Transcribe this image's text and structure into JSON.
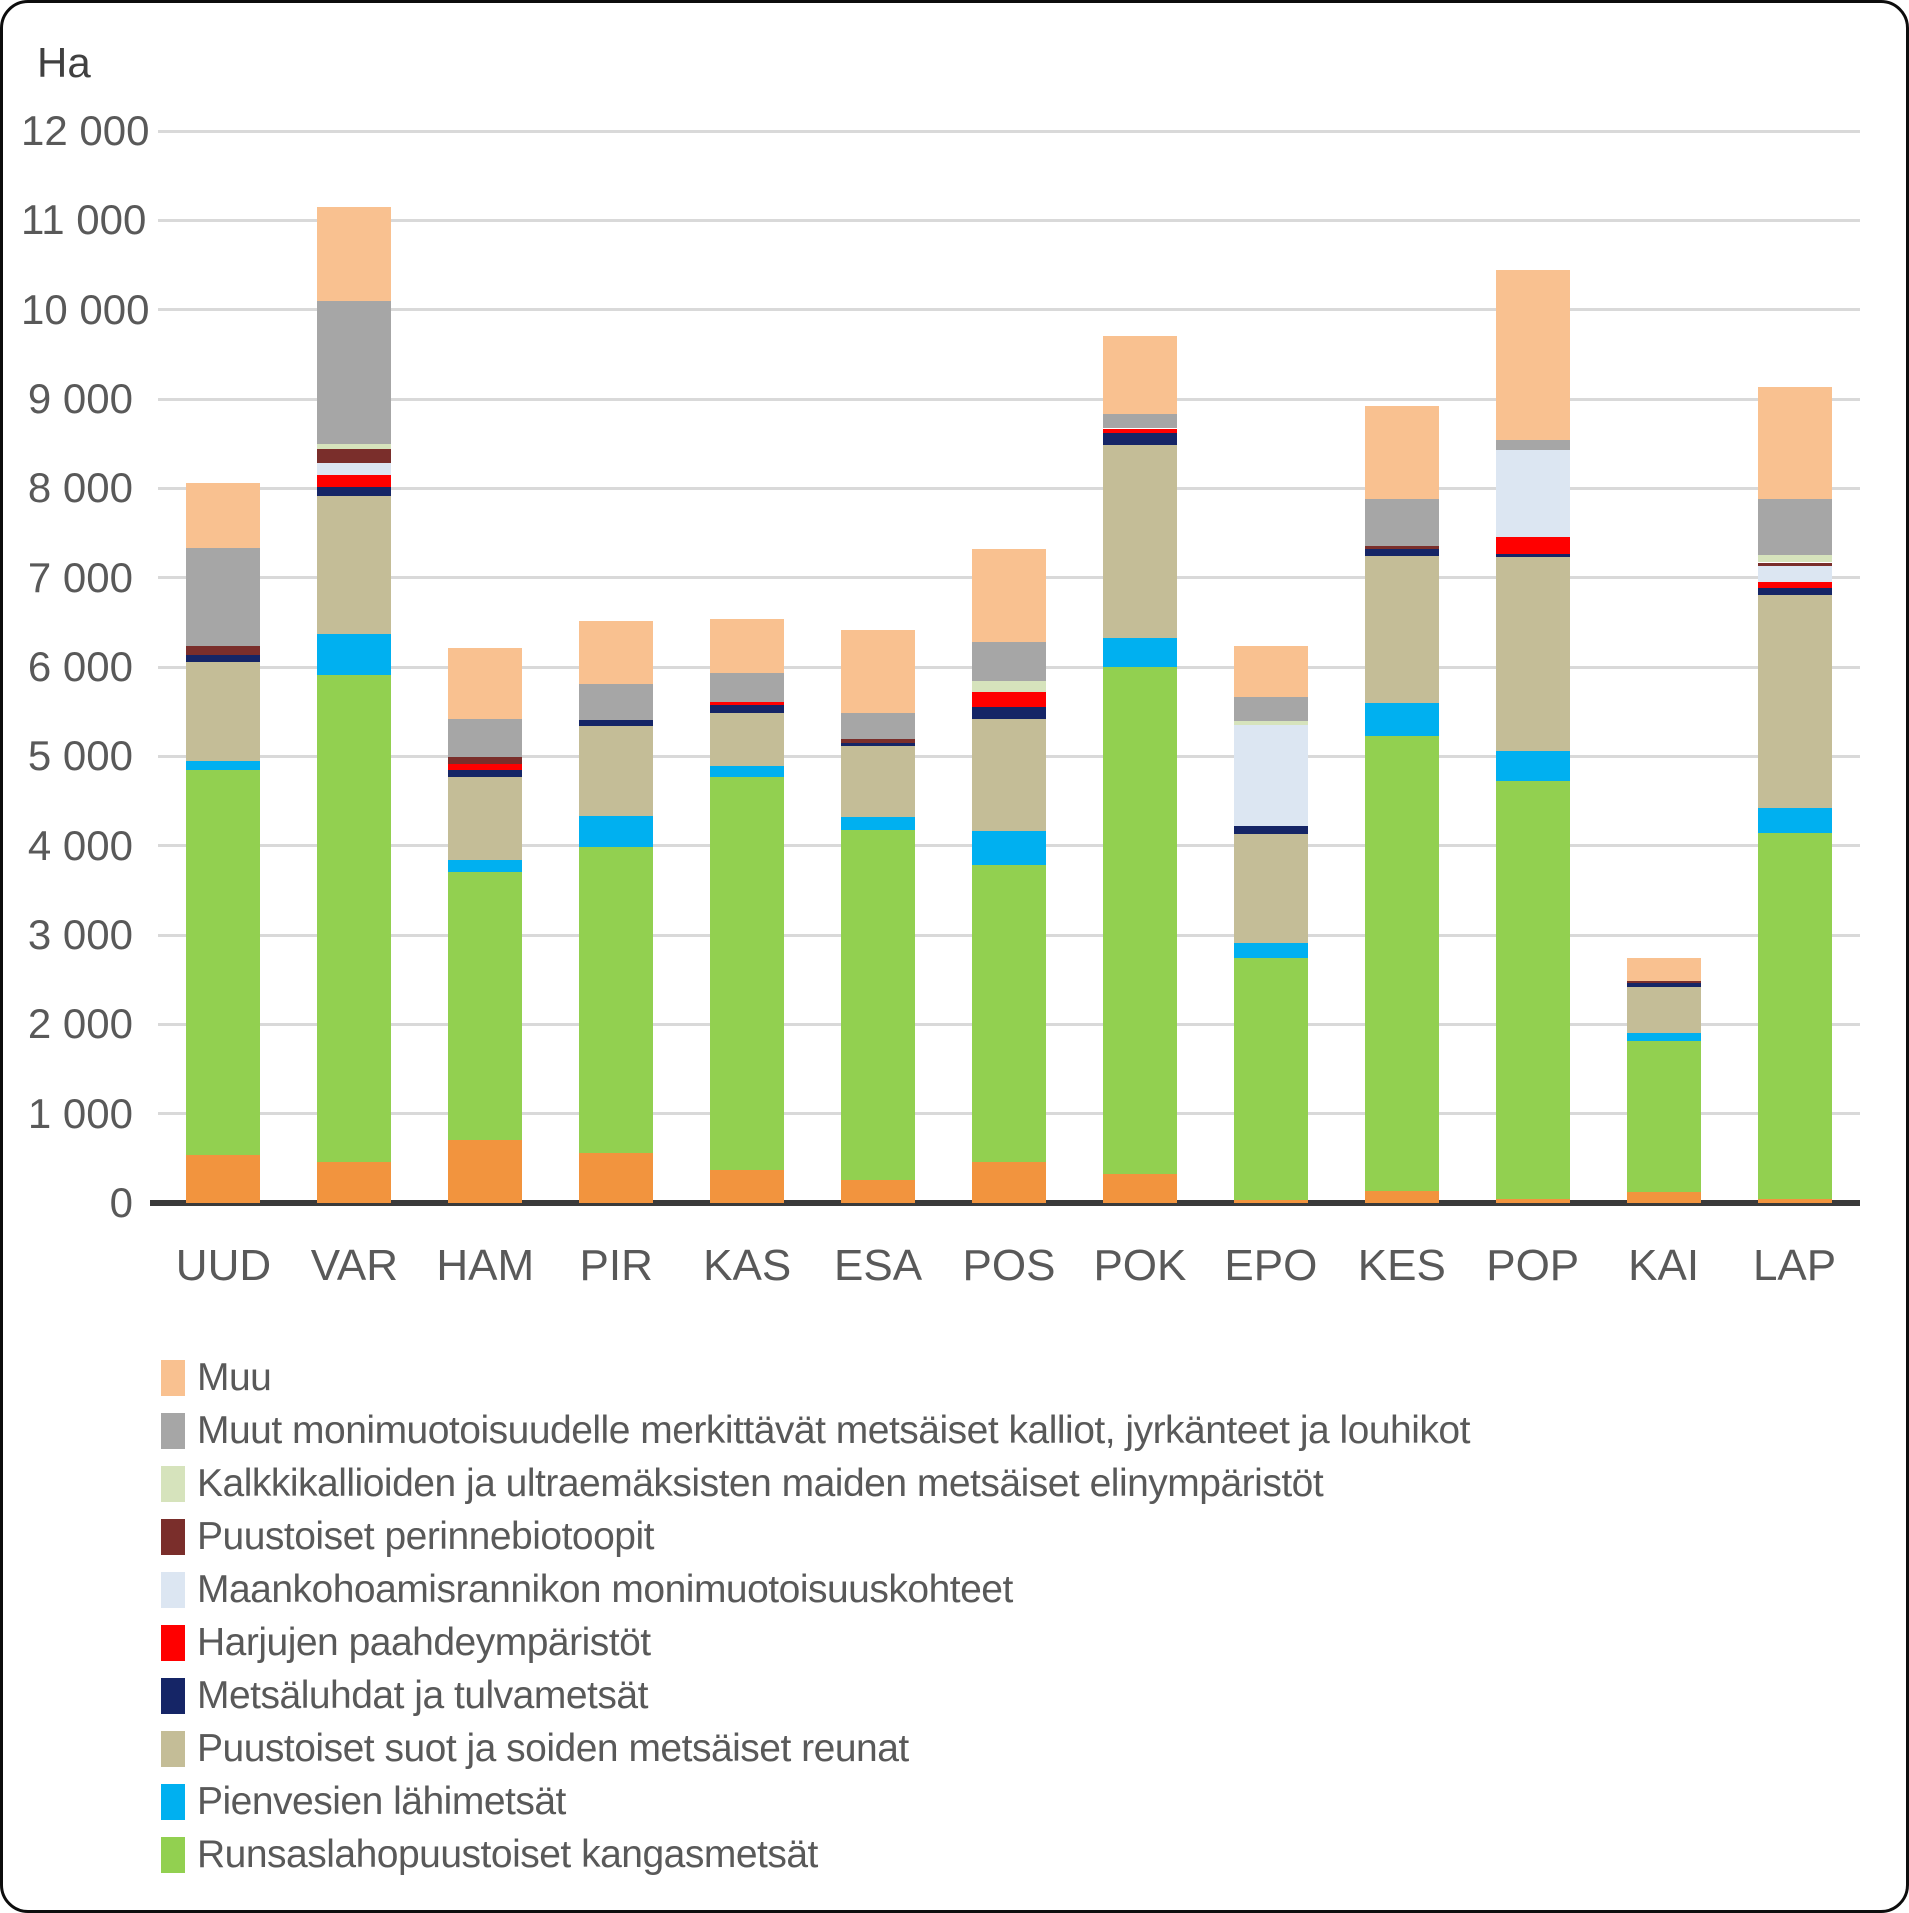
{
  "chart_data": {
    "type": "bar",
    "subtype": "stacked-vertical",
    "unit_label": "Ha",
    "ylim": [
      0,
      12000
    ],
    "ytick_interval": 1000,
    "ytick_labels": [
      "0",
      "1 000",
      "2 000",
      "3 000",
      "4 000",
      "5 000",
      "6 000",
      "7 000",
      "8 000",
      "9 000",
      "10 000",
      "11 000",
      "12 000"
    ],
    "grid": "horizontal-light-gray",
    "legend_position": "bottom-left",
    "categories": [
      "UUD",
      "VAR",
      "HAM",
      "PIR",
      "KAS",
      "ESA",
      "POS",
      "POK",
      "EPO",
      "KES",
      "POP",
      "KAI",
      "LAP"
    ],
    "series": [
      {
        "name": "",
        "color": "#F2943E",
        "in_legend": false,
        "values": [
          540,
          460,
          700,
          560,
          370,
          260,
          460,
          330,
          30,
          130,
          40,
          120,
          40
        ]
      },
      {
        "name": "Runsaslahopuustoiset kangasmetsät",
        "color": "#92D050",
        "in_legend": true,
        "values": [
          4310,
          5450,
          3010,
          3430,
          4400,
          3920,
          3320,
          5670,
          2710,
          5100,
          4680,
          1690,
          4100
        ]
      },
      {
        "name": "Pienvesien lähimetsät",
        "color": "#00B0F0",
        "in_legend": true,
        "values": [
          100,
          460,
          130,
          340,
          120,
          140,
          380,
          330,
          170,
          370,
          340,
          90,
          280
        ]
      },
      {
        "name": "Puustoiset suot ja soiden metsäiset reunat",
        "color": "#C4BD97",
        "in_legend": true,
        "values": [
          1110,
          1540,
          930,
          1010,
          590,
          800,
          1260,
          2150,
          1220,
          1640,
          2170,
          520,
          2390
        ]
      },
      {
        "name": "Metsäluhdat ja tulvametsät",
        "color": "#152566",
        "in_legend": true,
        "values": [
          70,
          110,
          80,
          70,
          100,
          30,
          130,
          140,
          90,
          80,
          40,
          40,
          80
        ]
      },
      {
        "name": "Harjujen paahdeympäristöt",
        "color": "#FF0000",
        "in_legend": true,
        "values": [
          0,
          130,
          60,
          0,
          30,
          0,
          170,
          50,
          0,
          0,
          180,
          0,
          60
        ]
      },
      {
        "name": "Maankohoamisrannikon monimuotoisuuskohteet",
        "color": "#DCE6F2",
        "in_legend": true,
        "values": [
          0,
          130,
          0,
          0,
          0,
          0,
          0,
          0,
          1130,
          0,
          980,
          0,
          180
        ]
      },
      {
        "name": "Puustoiset perinnebiotoopit",
        "color": "#7A2E2B",
        "in_legend": true,
        "values": [
          110,
          160,
          80,
          0,
          0,
          40,
          0,
          0,
          0,
          40,
          0,
          30,
          40
        ]
      },
      {
        "name": "Kalkkikallioiden ja ultraemäksisten maiden metsäiset elinympäristöt",
        "color": "#D6E3BC",
        "in_legend": true,
        "values": [
          0,
          60,
          0,
          0,
          0,
          0,
          120,
          0,
          50,
          0,
          0,
          0,
          80
        ]
      },
      {
        "name": "Muut monimuotoisuudelle merkittävät metsäiset kalliot, jyrkänteet ja louhikot",
        "color": "#A6A6A6",
        "in_legend": true,
        "values": [
          1090,
          1600,
          430,
          400,
          320,
          290,
          440,
          160,
          260,
          520,
          110,
          0,
          630
        ]
      },
      {
        "name": "Muu",
        "color": "#F9C190",
        "in_legend": true,
        "values": [
          730,
          1050,
          790,
          710,
          610,
          930,
          1040,
          870,
          580,
          1040,
          1900,
          250,
          1250
        ]
      }
    ],
    "totals": [
      8060,
      11150,
      6210,
      6520,
      6540,
      6410,
      7320,
      9700,
      6240,
      8920,
      10440,
      2740,
      9130
    ]
  },
  "colors": {
    "gridline": "#d9d9d9",
    "axis_line": "#3a3a3a",
    "text": "#595959"
  }
}
